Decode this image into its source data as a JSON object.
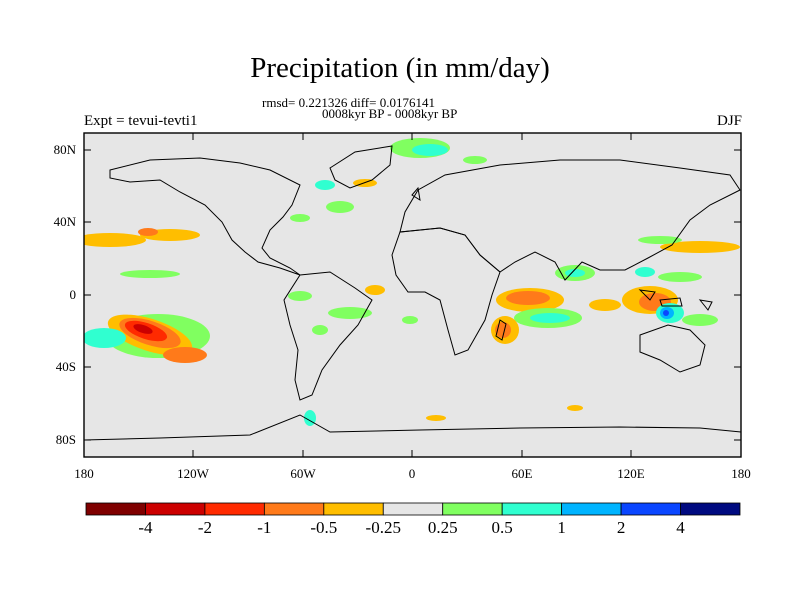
{
  "title": "Precipitation (in mm/day)",
  "stats_line": "rmsd= 0.221326 diff= 0.0176141",
  "period_line": "0008kyr BP - 0008kyr BP",
  "left_label": "Expt = tevui-tevti1",
  "right_label": "DJF",
  "lat_ticks": [
    "80N",
    "40N",
    "0",
    "40S",
    "80S"
  ],
  "lon_ticks": [
    "180",
    "120W",
    "60W",
    "0",
    "60E",
    "120E",
    "180"
  ],
  "colorbar": {
    "colors": [
      "#7f0000",
      "#cc0000",
      "#ff2a00",
      "#ff7a1a",
      "#ffbe00",
      "#e6e6e6",
      "#80ff60",
      "#30ffd0",
      "#00b4ff",
      "#0a46ff",
      "#000a80"
    ],
    "labels": [
      "-4",
      "-2",
      "-1",
      "-0.5",
      "-0.25",
      "0.25",
      "0.5",
      "1",
      "2",
      "4"
    ]
  },
  "colors": {
    "background": "#e6e6e6",
    "coast": "#000000"
  }
}
